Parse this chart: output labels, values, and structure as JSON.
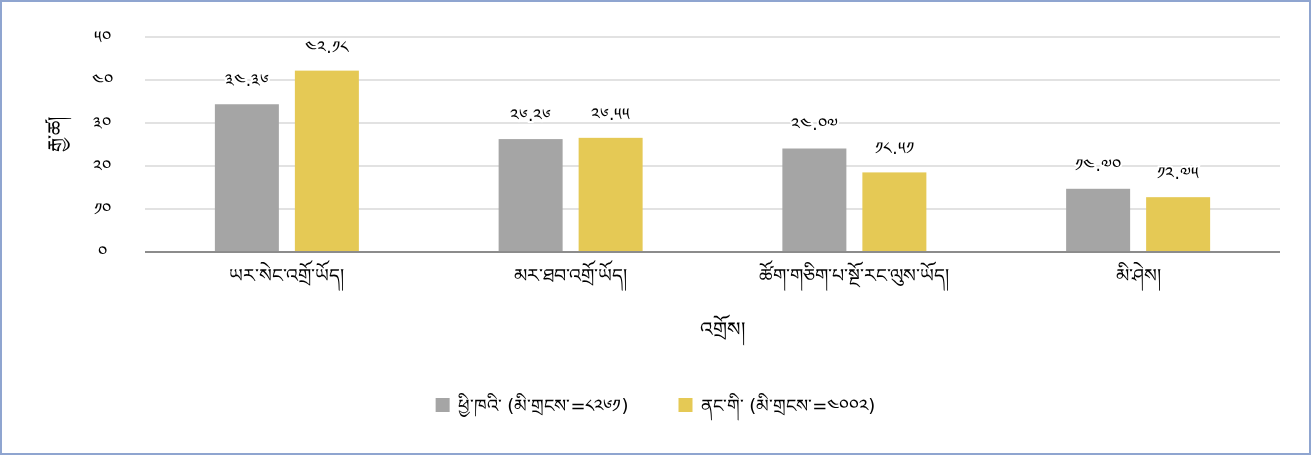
{
  "chart_data": {
    "type": "bar",
    "categories": [
      "ཡར་སེང་འགྲོ་ཡོད།",
      "མར་ཐབ་འགྲོ་ཡོད།",
      "ཚོག་གཅིག་པ་སྔོ་རང་ལུས་ཡོད།",
      "མི་ཤེས།"
    ],
    "series": [
      {
        "name": "ཕྱི་ཁའི་  (མི་གྲངས་=༨༢༦༡)",
        "color": "#a5a5a5",
        "values": [
          34.36,
          26.26,
          24.07,
          14.7
        ],
        "value_labels": [
          "༣༤.༣༦",
          "༢༦.༢༦",
          "༢༤.༠༧",
          "༡༤.༧༠"
        ]
      },
      {
        "name": "ནང་གི་  (མི་གྲངས་=༤༠༠༢)",
        "color": "#e5c955",
        "values": [
          42.18,
          26.55,
          18.51,
          12.75
        ],
        "value_labels": [
          "༤༢.༡༨",
          "༢༦.༥༥",
          "༡༨.༥༡",
          "༡༢.༧༥"
        ]
      }
    ],
    "xlabel": "འགྲོས།",
    "ylabel": "རྒྱ་ཚ།",
    "ylim": [
      0,
      50
    ],
    "yticks": [
      {
        "value": 0,
        "label": "༠"
      },
      {
        "value": 10,
        "label": "༡༠"
      },
      {
        "value": 20,
        "label": "༢༠"
      },
      {
        "value": 30,
        "label": "༣༠"
      },
      {
        "value": 40,
        "label": "༤༠"
      },
      {
        "value": 50,
        "label": "༥༠"
      }
    ],
    "grid": "y",
    "legend": "bottom"
  }
}
